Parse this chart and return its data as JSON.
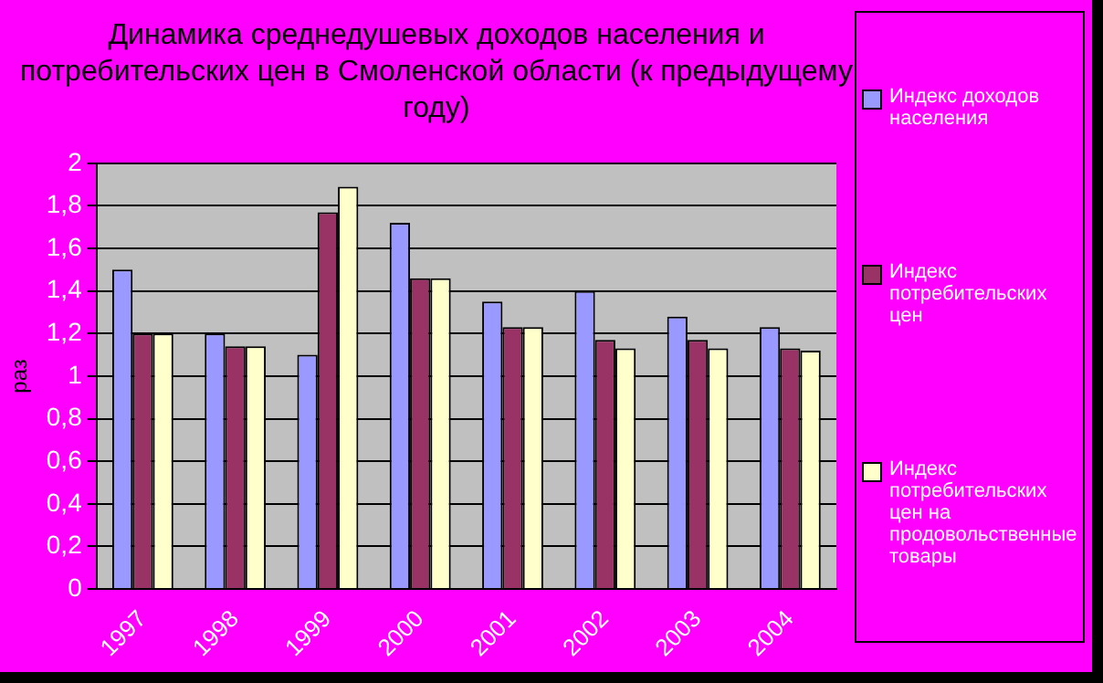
{
  "chart_data": {
    "type": "bar",
    "title": "Динамика среднедушевых доходов населения и потребительских цен в Смоленской области (к предыдущему году)",
    "ylabel": "раз",
    "categories": [
      "1997",
      "1998",
      "1999",
      "2000",
      "2001",
      "2002",
      "2003",
      "2004"
    ],
    "series": [
      {
        "name": "Индекс доходов населения",
        "color": "#9999ff",
        "values": [
          1.5,
          1.2,
          1.1,
          1.72,
          1.35,
          1.4,
          1.28,
          1.23
        ]
      },
      {
        "name": "Индекс потребительских цен",
        "color": "#993366",
        "values": [
          1.2,
          1.14,
          1.77,
          1.46,
          1.23,
          1.17,
          1.17,
          1.13
        ]
      },
      {
        "name": "Индекс потребительских цен на продовольственные товары",
        "color": "#ffffcc",
        "values": [
          1.2,
          1.14,
          1.89,
          1.46,
          1.23,
          1.13,
          1.13,
          1.12
        ]
      }
    ],
    "ylim": [
      0,
      2
    ],
    "yticks": [
      0,
      {
        "value": 0.2,
        "label": "0,2"
      },
      {
        "value": 0.4,
        "label": "0,4"
      },
      {
        "value": 0.6,
        "label": "0,6"
      },
      {
        "value": 0.8,
        "label": "0,8"
      },
      1,
      {
        "value": 1.2,
        "label": "1,2"
      },
      {
        "value": 1.4,
        "label": "1,4"
      },
      {
        "value": 1.6,
        "label": "1,6"
      },
      {
        "value": 1.8,
        "label": "1,8"
      },
      2
    ],
    "grid": "y",
    "legend": "right"
  }
}
